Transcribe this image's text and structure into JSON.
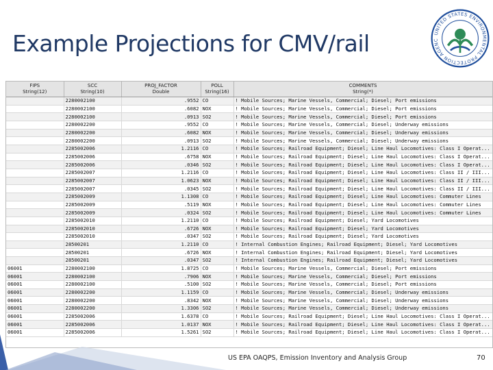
{
  "slide": {
    "title": "Example Projections for CMV/rail",
    "footer": "US EPA OAQPS, Emission Inventory and Analysis Group",
    "page_number": "70",
    "seal_text": "UNITED STATES ENVIRONMENTAL PROTECTION AGENCY",
    "colors": {
      "title": "#1f3864",
      "seal_green": "#2e8b57",
      "seal_blue": "#1f4e9c"
    }
  },
  "table": {
    "headers": [
      {
        "name": "FIPS",
        "type": "String(12)"
      },
      {
        "name": "SCC",
        "type": "String(10)"
      },
      {
        "name": "PROJ_FACTOR",
        "type": "Double"
      },
      {
        "name": "POLL",
        "type": "String(16)"
      },
      {
        "name": "COMMENTS",
        "type": "String(*)"
      }
    ],
    "rows": [
      [
        "",
        "2280002100",
        ".9552",
        "CO",
        "! Mobile Sources; Marine Vessels, Commercial; Diesel; Port emissions"
      ],
      [
        "",
        "2280002100",
        ".6082",
        "NOX",
        "! Mobile Sources; Marine Vessels, Commercial; Diesel; Port emissions"
      ],
      [
        "",
        "2280002100",
        ".0913",
        "SO2",
        "! Mobile Sources; Marine Vessels, Commercial; Diesel; Port emissions"
      ],
      [
        "",
        "2280002200",
        ".9552",
        "CO",
        "! Mobile Sources; Marine Vessels, Commercial; Diesel; Underway emissions"
      ],
      [
        "",
        "2280002200",
        ".6082",
        "NOX",
        "! Mobile Sources; Marine Vessels, Commercial; Diesel; Underway emissions"
      ],
      [
        "",
        "2280002200",
        ".0913",
        "SO2",
        "! Mobile Sources; Marine Vessels, Commercial; Diesel; Underway emissions"
      ],
      [
        "",
        "2285002006",
        "1.2116",
        "CO",
        "! Mobile Sources; Railroad Equipment; Diesel; Line Haul Locomotives: Class I Operat..."
      ],
      [
        "",
        "2285002006",
        ".6758",
        "NOX",
        "! Mobile Sources; Railroad Equipment; Diesel; Line Haul Locomotives: Class I Operat..."
      ],
      [
        "",
        "2285002006",
        ".0346",
        "SO2",
        "! Mobile Sources; Railroad Equipment; Diesel; Line Haul Locomotives: Class I Operat..."
      ],
      [
        "",
        "2285002007",
        "1.2116",
        "CO",
        "! Mobile Sources; Railroad Equipment; Diesel; Line Haul Locomotives: Class II / III..."
      ],
      [
        "",
        "2285002007",
        "1.0623",
        "NOX",
        "! Mobile Sources; Railroad Equipment; Diesel; Line Haul Locomotives: Class II / III..."
      ],
      [
        "",
        "2285002007",
        ".0345",
        "SO2",
        "! Mobile Sources; Railroad Equipment; Diesel; Line Haul Locomotives: Class II / III..."
      ],
      [
        "",
        "2285002009",
        "1.1308",
        "CO",
        "! Mobile Sources; Railroad Equipment; Diesel; Line Haul Locomotives: Commuter Lines"
      ],
      [
        "",
        "2285002009",
        ".5119",
        "NOX",
        "! Mobile Sources; Railroad Equipment; Diesel; Line Haul Locomotives: Commuter Lines"
      ],
      [
        "",
        "2285002009",
        ".0324",
        "SO2",
        "! Mobile Sources; Railroad Equipment; Diesel; Line Haul Locomotives: Commuter Lines"
      ],
      [
        "",
        "2285002010",
        "1.2110",
        "CO",
        "! Mobile Sources; Railroad Equipment; Diesel; Yard Locomotives"
      ],
      [
        "",
        "2285002010",
        ".6726",
        "NOX",
        "! Mobile Sources; Railroad Equipment; Diesel; Yard Locomotives"
      ],
      [
        "",
        "2285002010",
        ".0347",
        "SO2",
        "! Mobile Sources; Railroad Equipment; Diesel; Yard Locomotives"
      ],
      [
        "",
        "28500201",
        "1.2110",
        "CO",
        "! Internal Combustion Engines; Railroad Equipment; Diesel; Yard Locomotives"
      ],
      [
        "",
        "28500201",
        ".6726",
        "NOX",
        "! Internal Combustion Engines; Railroad Equipment; Diesel; Yard Locomotives"
      ],
      [
        "",
        "28500201",
        ".0347",
        "SO2",
        "! Internal Combustion Engines; Railroad Equipment; Diesel; Yard Locomotives"
      ],
      [
        "06001",
        "2280002100",
        "1.8725",
        "CO",
        "! Mobile Sources; Marine Vessels, Commercial; Diesel; Port emissions"
      ],
      [
        "06001",
        "2280002100",
        ".7906",
        "NOX",
        "! Mobile Sources; Marine Vessels, Commercial; Diesel; Port emissions"
      ],
      [
        "06001",
        "2280002100",
        ".5100",
        "SO2",
        "! Mobile Sources; Marine Vessels, Commercial; Diesel; Port emissions"
      ],
      [
        "06001",
        "2280002200",
        "1.1159",
        "CO",
        "! Mobile Sources; Marine Vessels, Commercial; Diesel; Underway emissions"
      ],
      [
        "06001",
        "2280002200",
        ".8342",
        "NOX",
        "! Mobile Sources; Marine Vessels, Commercial; Diesel; Underway emissions"
      ],
      [
        "06001",
        "2280002200",
        "1.3306",
        "SO2",
        "! Mobile Sources; Marine Vessels, Commercial; Diesel; Underway emissions"
      ],
      [
        "06001",
        "2285002006",
        "1.6378",
        "CO",
        "! Mobile Sources; Railroad Equipment; Diesel; Line Haul Locomotives: Class I Operat..."
      ],
      [
        "06001",
        "2285002006",
        "1.0137",
        "NOX",
        "! Mobile Sources; Railroad Equipment; Diesel; Line Haul Locomotives: Class I Operat..."
      ],
      [
        "06001",
        "2285002006",
        "1.5261",
        "SO2",
        "! Mobile Sources; Railroad Equipment; Diesel; Line Haul Locomotives: Class I Operat..."
      ]
    ]
  }
}
